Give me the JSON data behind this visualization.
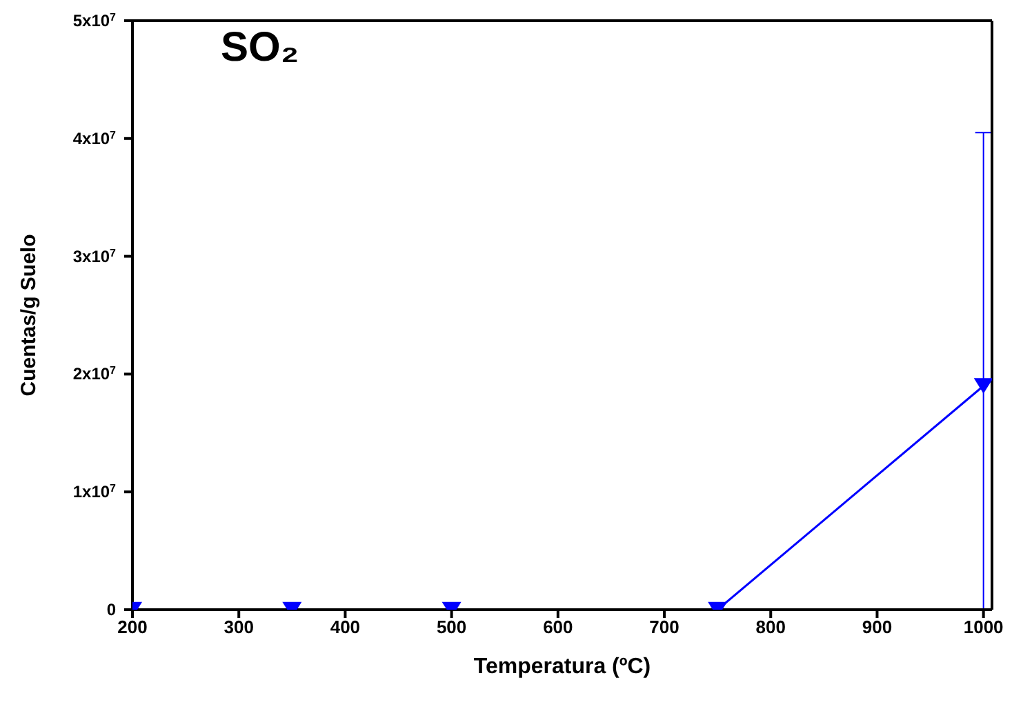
{
  "chart_data": {
    "type": "line",
    "title": "SO₂",
    "xlabel": "Temperatura (ºC)",
    "ylabel": "Cuentas/g Suelo",
    "x": [
      200,
      350,
      500,
      750,
      1000
    ],
    "series": [
      {
        "color": "#0000ff",
        "values": [
          0,
          0,
          0,
          0,
          19000000
        ],
        "errors": [
          null,
          null,
          null,
          null,
          [
            0,
            40500000
          ]
        ]
      }
    ],
    "xlim": [
      200,
      1008
    ],
    "xticks": [
      200,
      300,
      400,
      500,
      600,
      700,
      800,
      900,
      1000
    ],
    "ylim": [
      0,
      50000000
    ],
    "yticks": [
      {
        "value": 0,
        "label": "0"
      },
      {
        "value": 10000000,
        "label": "1x10$^{7}$"
      },
      {
        "value": 20000000,
        "label": "2x10$^{7}$"
      },
      {
        "value": 30000000,
        "label": "3x10$^{7}$"
      },
      {
        "value": 40000000,
        "label": "4x10$^{7}$"
      },
      {
        "value": 50000000,
        "label": "5x10$^{7}$"
      }
    ],
    "marker": "triangle",
    "line_style": "solid",
    "grid": false,
    "legend": false
  }
}
